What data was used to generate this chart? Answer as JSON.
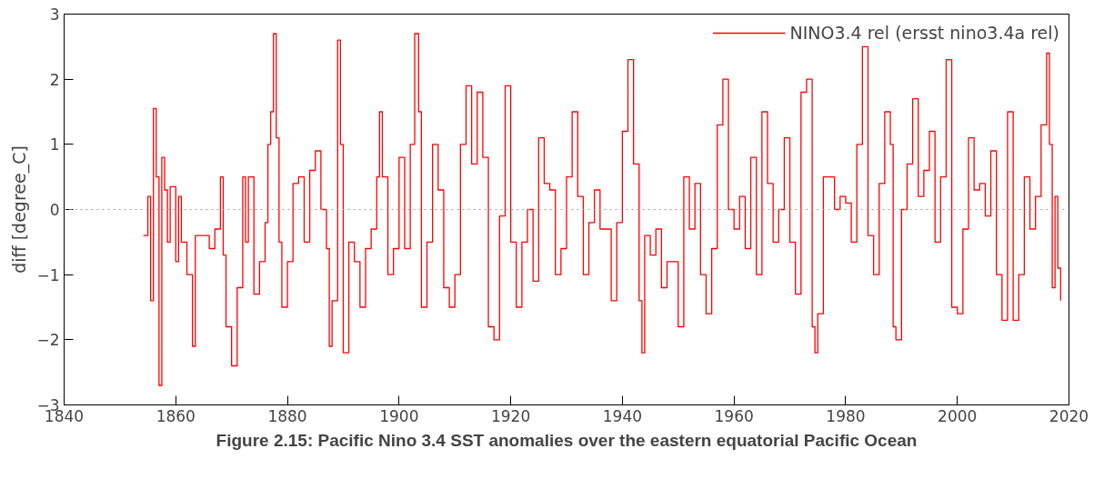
{
  "chart_data": {
    "type": "step",
    "ylabel": "diff [degree_C]",
    "legend": "top right",
    "grid": false,
    "annotations": [
      "Figure 2.15: Pacific Nino 3.4 SST anomalies over the eastern equatorial Pacific Ocean"
    ],
    "xlim": [
      1840,
      2020
    ],
    "xticks": [
      1840,
      1860,
      1880,
      1900,
      1920,
      1940,
      1960,
      1980,
      2000,
      2020
    ],
    "ylim": [
      -3,
      3
    ],
    "yticks": [
      -3,
      -2,
      -1,
      0,
      1,
      2,
      3
    ],
    "ref_lines": [
      {
        "axis": "y",
        "value": 0,
        "color": "#a0a0a0",
        "line_style": "dotted"
      }
    ],
    "series": [
      {
        "name": "NINO3.4 rel (ersst nino3.4a rel)",
        "color": "#ff0000",
        "x": [
          1854.2,
          1855,
          1855.5,
          1856,
          1856.5,
          1857,
          1857.5,
          1858,
          1858.5,
          1859,
          1860,
          1860.5,
          1861,
          1862,
          1863,
          1863.5,
          1865,
          1866,
          1867,
          1868,
          1868.5,
          1869,
          1870,
          1871,
          1872,
          1872.5,
          1873,
          1874,
          1875,
          1876,
          1876.5,
          1877,
          1877.5,
          1878,
          1878.5,
          1879,
          1880,
          1881,
          1882,
          1883,
          1884,
          1885,
          1886,
          1887,
          1887.5,
          1888,
          1889,
          1889.5,
          1890,
          1891,
          1892,
          1893,
          1894,
          1895,
          1896,
          1896.5,
          1897,
          1898,
          1899,
          1900,
          1901,
          1902,
          1902.8,
          1903.5,
          1904,
          1905,
          1906,
          1907,
          1908,
          1909,
          1910,
          1911,
          1912,
          1913,
          1914,
          1915,
          1916,
          1917,
          1918,
          1919,
          1920,
          1921,
          1922,
          1923,
          1924,
          1925,
          1926,
          1927,
          1928,
          1929,
          1930,
          1931,
          1932,
          1933,
          1934,
          1935,
          1936,
          1938,
          1939,
          1940,
          1941,
          1942,
          1943,
          1943.5,
          1944,
          1945,
          1946,
          1947,
          1948,
          1950,
          1951,
          1952,
          1953,
          1954,
          1955,
          1956,
          1957,
          1958,
          1959,
          1960,
          1961,
          1962,
          1963,
          1964,
          1965,
          1966,
          1967,
          1968,
          1969,
          1970,
          1971,
          1972,
          1973,
          1974,
          1974.5,
          1975,
          1976,
          1977,
          1978,
          1979,
          1980,
          1981,
          1982,
          1983,
          1984,
          1985,
          1986,
          1987,
          1988,
          1988.5,
          1989,
          1990,
          1991,
          1992,
          1993,
          1994,
          1995,
          1996,
          1997,
          1998,
          1999,
          2000,
          2001,
          2002,
          2003,
          2004,
          2005,
          2006,
          2007,
          2008,
          2009,
          2010,
          2011,
          2012,
          2013,
          2014,
          2015,
          2016,
          2016.5,
          2017,
          2017.5,
          2018,
          2018.5
        ],
        "values": [
          -0.4,
          0.2,
          -1.4,
          1.55,
          0.5,
          -2.7,
          0.8,
          0.3,
          -0.5,
          0.35,
          -0.8,
          0.2,
          -0.5,
          -1.0,
          -2.1,
          -0.4,
          -0.4,
          -0.6,
          -0.3,
          0.5,
          -0.7,
          -1.8,
          -2.4,
          -1.2,
          0.5,
          -0.5,
          0.5,
          -1.3,
          -0.8,
          -0.2,
          1.0,
          1.5,
          2.7,
          1.1,
          -0.5,
          -1.5,
          -0.8,
          0.4,
          0.5,
          -0.5,
          0.6,
          0.9,
          0.0,
          -0.6,
          -2.1,
          -1.4,
          2.6,
          1.0,
          -2.2,
          -0.5,
          -0.8,
          -1.5,
          -0.6,
          -0.3,
          0.5,
          1.5,
          0.5,
          -1.0,
          -0.6,
          0.8,
          -0.6,
          1.0,
          2.7,
          1.5,
          -1.5,
          -0.5,
          1.0,
          0.3,
          -1.2,
          -1.5,
          -1.0,
          1.0,
          1.9,
          0.7,
          1.8,
          0.8,
          -1.8,
          -2.0,
          -0.1,
          1.9,
          -0.5,
          -1.5,
          -0.5,
          0.0,
          -1.1,
          1.1,
          0.4,
          0.3,
          -1.0,
          -0.6,
          0.5,
          1.5,
          0.2,
          -1.0,
          -0.2,
          0.3,
          -0.3,
          -1.4,
          -0.2,
          1.2,
          2.3,
          0.7,
          -1.4,
          -2.2,
          -0.4,
          -0.7,
          -0.3,
          -1.2,
          -0.8,
          -1.8,
          0.5,
          -0.3,
          0.4,
          -1.0,
          -1.6,
          -0.6,
          1.3,
          2.0,
          0.0,
          -0.3,
          0.2,
          -0.6,
          0.8,
          -1.0,
          1.5,
          0.4,
          -0.5,
          0.0,
          1.1,
          -0.5,
          -1.3,
          1.8,
          2.0,
          -1.8,
          -2.2,
          -1.6,
          0.5,
          0.5,
          0.0,
          0.2,
          0.1,
          -0.5,
          1.0,
          2.5,
          -0.4,
          -1.0,
          0.4,
          1.5,
          1.0,
          -1.8,
          -2.0,
          0.0,
          0.7,
          1.7,
          0.2,
          0.6,
          1.2,
          -0.5,
          0.5,
          2.3,
          -1.5,
          -1.6,
          -0.3,
          1.1,
          0.3,
          0.4,
          -0.1,
          0.9,
          -1.0,
          -1.7,
          1.5,
          -1.7,
          -1.0,
          0.5,
          -0.3,
          0.2,
          1.3,
          2.4,
          1.0,
          -1.2,
          0.2,
          -0.9,
          -1.4
        ]
      }
    ]
  }
}
